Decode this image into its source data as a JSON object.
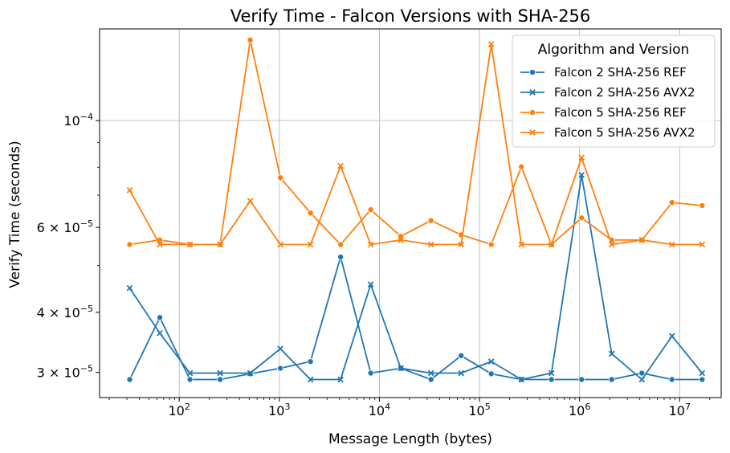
{
  "chart_data": {
    "type": "line",
    "title": "Verify Time - Falcon Versions with SHA-256",
    "xlabel": "Message Length (bytes)",
    "ylabel": "Verify Time (seconds)",
    "xscale": "log",
    "yscale": "log",
    "xlim": [
      16,
      26000000
    ],
    "ylim": [
      2.66e-05,
      0.000155
    ],
    "x_ticks": [
      {
        "value": 100,
        "base": "10",
        "exp": "2"
      },
      {
        "value": 1000,
        "base": "10",
        "exp": "3"
      },
      {
        "value": 10000,
        "base": "10",
        "exp": "4"
      },
      {
        "value": 100000,
        "base": "10",
        "exp": "5"
      },
      {
        "value": 1000000,
        "base": "10",
        "exp": "6"
      },
      {
        "value": 10000000,
        "base": "10",
        "exp": "7"
      }
    ],
    "y_ticks": [
      {
        "value": 3e-05,
        "mant": "3 × 10",
        "exp": "−5"
      },
      {
        "value": 4e-05,
        "mant": "4 × 10",
        "exp": "−5"
      },
      {
        "value": 6e-05,
        "mant": "6 × 10",
        "exp": "−5"
      },
      {
        "value": 0.0001,
        "mant": "10",
        "exp": "−4"
      }
    ],
    "grid": true,
    "legend": {
      "title": "Algorithm and Version",
      "placement": "top-right"
    },
    "x": [
      32,
      64,
      128,
      256,
      512,
      1024,
      2048,
      4096,
      8192,
      16384,
      32768,
      65536,
      131072,
      262144,
      524288,
      1048576,
      2097152,
      4194304,
      8388608,
      16777216
    ],
    "series": [
      {
        "name": "Falcon 2 SHA-256 REF",
        "color": "#1f77b4",
        "marker": "circle",
        "values": [
          2.9e-05,
          3.9e-05,
          2.9e-05,
          2.9e-05,
          2.98e-05,
          3.06e-05,
          3.16e-05,
          5.21e-05,
          2.99e-05,
          3.06e-05,
          2.9e-05,
          3.25e-05,
          2.98e-05,
          2.9e-05,
          2.9e-05,
          2.9e-05,
          2.9e-05,
          2.99e-05,
          2.9e-05,
          2.9e-05
        ]
      },
      {
        "name": "Falcon 2 SHA-256 AVX2",
        "color": "#1f77b4",
        "marker": "x",
        "values": [
          4.49e-05,
          3.62e-05,
          2.99e-05,
          2.99e-05,
          2.99e-05,
          3.36e-05,
          2.9e-05,
          2.9e-05,
          4.57e-05,
          3.06e-05,
          2.99e-05,
          2.99e-05,
          3.16e-05,
          2.9e-05,
          2.99e-05,
          7.71e-05,
          3.28e-05,
          2.9e-05,
          3.57e-05,
          2.99e-05
        ]
      },
      {
        "name": "Falcon 5 SHA-256 REF",
        "color": "#ff7f0e",
        "marker": "circle",
        "values": [
          5.53e-05,
          5.65e-05,
          5.53e-05,
          5.53e-05,
          0.000147,
          7.61e-05,
          6.43e-05,
          5.53e-05,
          6.53e-05,
          5.75e-05,
          6.2e-05,
          5.79e-05,
          5.53e-05,
          8.02e-05,
          5.53e-05,
          6.28e-05,
          5.65e-05,
          5.65e-05,
          6.76e-05,
          6.66e-05
        ]
      },
      {
        "name": "Falcon 5 SHA-256 AVX2",
        "color": "#ff7f0e",
        "marker": "x",
        "values": [
          7.17e-05,
          5.53e-05,
          5.53e-05,
          5.53e-05,
          6.81e-05,
          5.53e-05,
          5.53e-05,
          8.05e-05,
          5.53e-05,
          5.65e-05,
          5.53e-05,
          5.53e-05,
          0.000144,
          5.53e-05,
          5.53e-05,
          8.38e-05,
          5.53e-05,
          5.65e-05,
          5.53e-05,
          5.53e-05
        ]
      }
    ]
  }
}
